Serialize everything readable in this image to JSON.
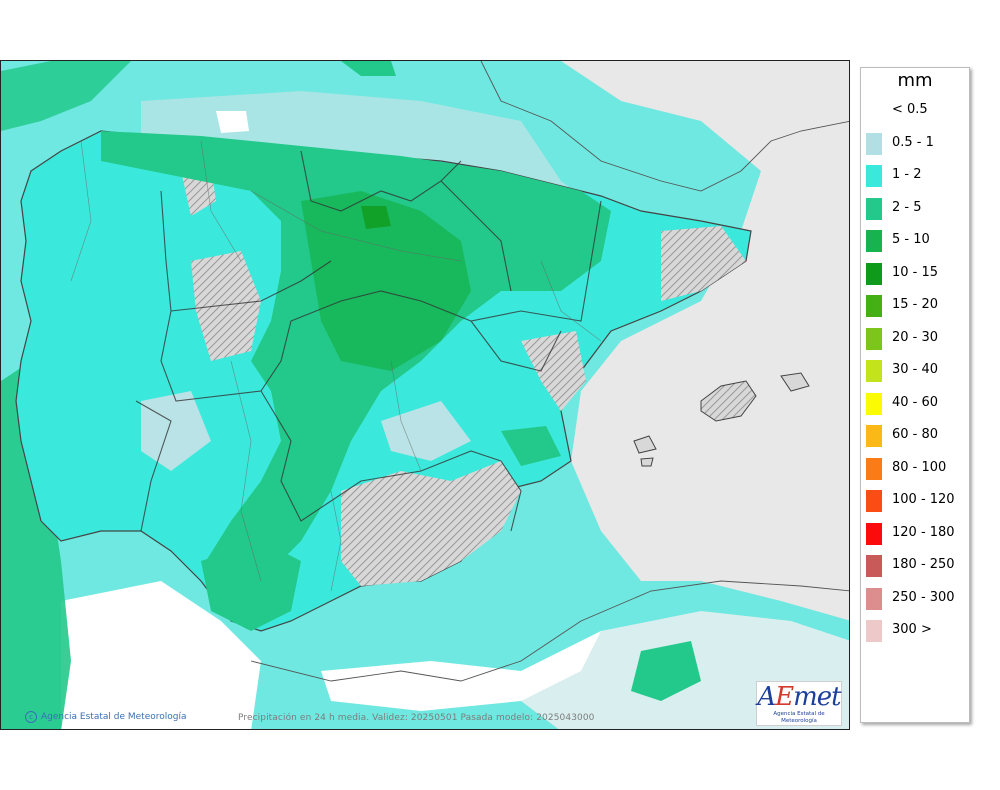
{
  "legend": {
    "unit": "mm",
    "items": [
      {
        "label": "< 0.5",
        "color": ""
      },
      {
        "label": "0.5 - 1",
        "color": "#b2dfe3"
      },
      {
        "label": "1 - 2",
        "color": "#3be9dc"
      },
      {
        "label": "2 - 5",
        "color": "#22c98a"
      },
      {
        "label": "5 - 10",
        "color": "#16b34e"
      },
      {
        "label": "10 - 15",
        "color": "#109a1c"
      },
      {
        "label": "15 - 20",
        "color": "#45b016"
      },
      {
        "label": "20 - 30",
        "color": "#7cc61b"
      },
      {
        "label": "30 - 40",
        "color": "#c3e31c"
      },
      {
        "label": "40 - 60",
        "color": "#fbfb04"
      },
      {
        "label": "60 - 80",
        "color": "#fbb917"
      },
      {
        "label": "80 - 100",
        "color": "#fb7c17"
      },
      {
        "label": "100 - 120",
        "color": "#fb4c15"
      },
      {
        "label": "120 - 180",
        "color": "#fb0b0b"
      },
      {
        "label": "180 - 250",
        "color": "#c95a5a"
      },
      {
        "label": "250 - 300",
        "color": "#dc8e8e"
      },
      {
        "label": "300 >",
        "color": "#eec9c9"
      }
    ]
  },
  "footer": {
    "credit": "Agencia Estatal de Meteorología",
    "caption": "Precipitación en 24 h media. Validez: 20250501 Pasada modelo: 2025043000"
  },
  "logo": {
    "text_main_a": "A",
    "text_main_e": "E",
    "text_main_rest": "met",
    "subtitle": "Agencia Estatal de Meteorología"
  }
}
